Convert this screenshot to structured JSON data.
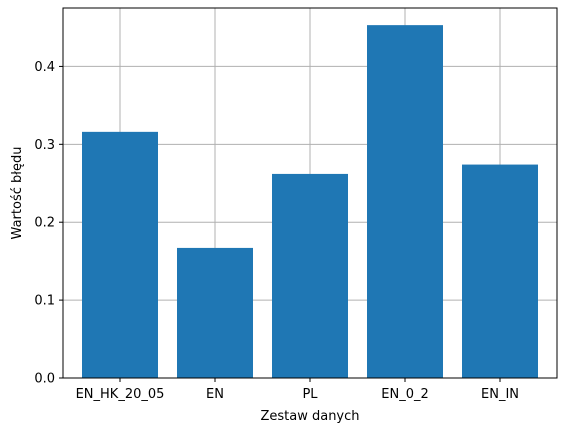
{
  "chart_data": {
    "type": "bar",
    "categories": [
      "EN_HK_20_05",
      "EN",
      "PL",
      "EN_0_2",
      "EN_IN"
    ],
    "values": [
      0.316,
      0.167,
      0.262,
      0.453,
      0.274
    ],
    "xlabel": "Zestaw danych",
    "ylabel": "Wartość błędu",
    "ylim": [
      0,
      0.475
    ],
    "yticks": [
      0.0,
      0.1,
      0.2,
      0.3,
      0.4
    ],
    "ytick_labels": [
      "0.0",
      "0.1",
      "0.2",
      "0.3",
      "0.4"
    ],
    "grid": true,
    "bar_color": "#1f77b4",
    "grid_color": "#b0b0b0"
  }
}
